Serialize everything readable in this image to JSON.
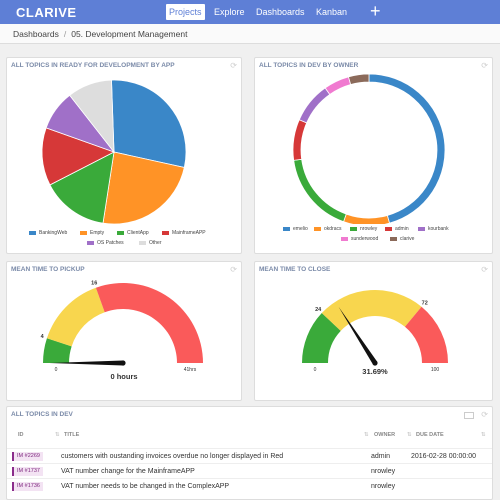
{
  "app": {
    "logo": "CLARIVE"
  },
  "nav": {
    "items": [
      "Projects",
      "Explore",
      "Dashboards",
      "Kanban"
    ],
    "active": "Projects",
    "plus": "+"
  },
  "breadcrumb": {
    "items": [
      "Dashboards",
      "05. Development Management"
    ],
    "separator": "/"
  },
  "panels": {
    "by_app": {
      "title": "ALL TOPICS IN READY FOR DEVELOPMENT BY APP",
      "chart_data": {
        "type": "pie",
        "categories": [
          "BankingWeb",
          "Empty",
          "ClientApp",
          "MainframeAPP",
          "OS Patches",
          "Other"
        ],
        "values": [
          29,
          24,
          15,
          13,
          9,
          10
        ],
        "colors": [
          "#3a87c8",
          "#ff9326",
          "#3aaa3a",
          "#d63838",
          "#a070c8",
          "#dddddd"
        ],
        "legend_position": "bottom"
      }
    },
    "by_owner": {
      "title": "ALL TOPICS IN DEV BY OWNER",
      "chart_data": {
        "type": "pie",
        "donut": true,
        "categories": [
          "emelio",
          "okdracs",
          "nrowley",
          "admin",
          "kourbank",
          "sunderwood",
          "clarive"
        ],
        "values": [
          42,
          9,
          16,
          8,
          8,
          5,
          4
        ],
        "colors": [
          "#3a87c8",
          "#ff9326",
          "#3aaa3a",
          "#d63838",
          "#a070c8",
          "#f07ad0",
          "#8b6a5a"
        ],
        "legend_position": "bottom"
      }
    },
    "pickup": {
      "title": "MEAN TIME TO PICKUP",
      "gauge": {
        "value_label": "0 hours",
        "value": 0,
        "min_label": "0",
        "max_label": "41hrs",
        "threshold_labels": [
          "4",
          "16"
        ],
        "band_fractions": [
          0.1,
          0.39
        ],
        "colors": [
          "#3aaa3a",
          "#f8d64e",
          "#fa5a5a"
        ]
      }
    },
    "close": {
      "title": "MEAN TIME TO CLOSE",
      "gauge": {
        "value_label": "31.69%",
        "value": 31.69,
        "min_label": "0",
        "max_label": "100",
        "threshold_labels": [
          "24",
          "72"
        ],
        "band_fractions": [
          0.24,
          0.72
        ],
        "colors": [
          "#3aaa3a",
          "#f8d64e",
          "#fa5a5a"
        ]
      }
    },
    "topics": {
      "title": "ALL TOPICS IN DEV",
      "columns": [
        "ID",
        "TITLE",
        "OWNER",
        "DUE DATE"
      ],
      "rows": [
        {
          "id": "IM #2269",
          "title": "customers with oustanding invoices overdue no longer displayed in Red",
          "owner": "admin",
          "due": "2016-02-28 00:00:00"
        },
        {
          "id": "IM #1737",
          "title": "VAT number change for the MainframeAPP",
          "owner": "nrowley",
          "due": ""
        },
        {
          "id": "IM #1736",
          "title": "VAT number needs to be changed in the ComplexAPP",
          "owner": "nrowley",
          "due": ""
        }
      ]
    }
  }
}
